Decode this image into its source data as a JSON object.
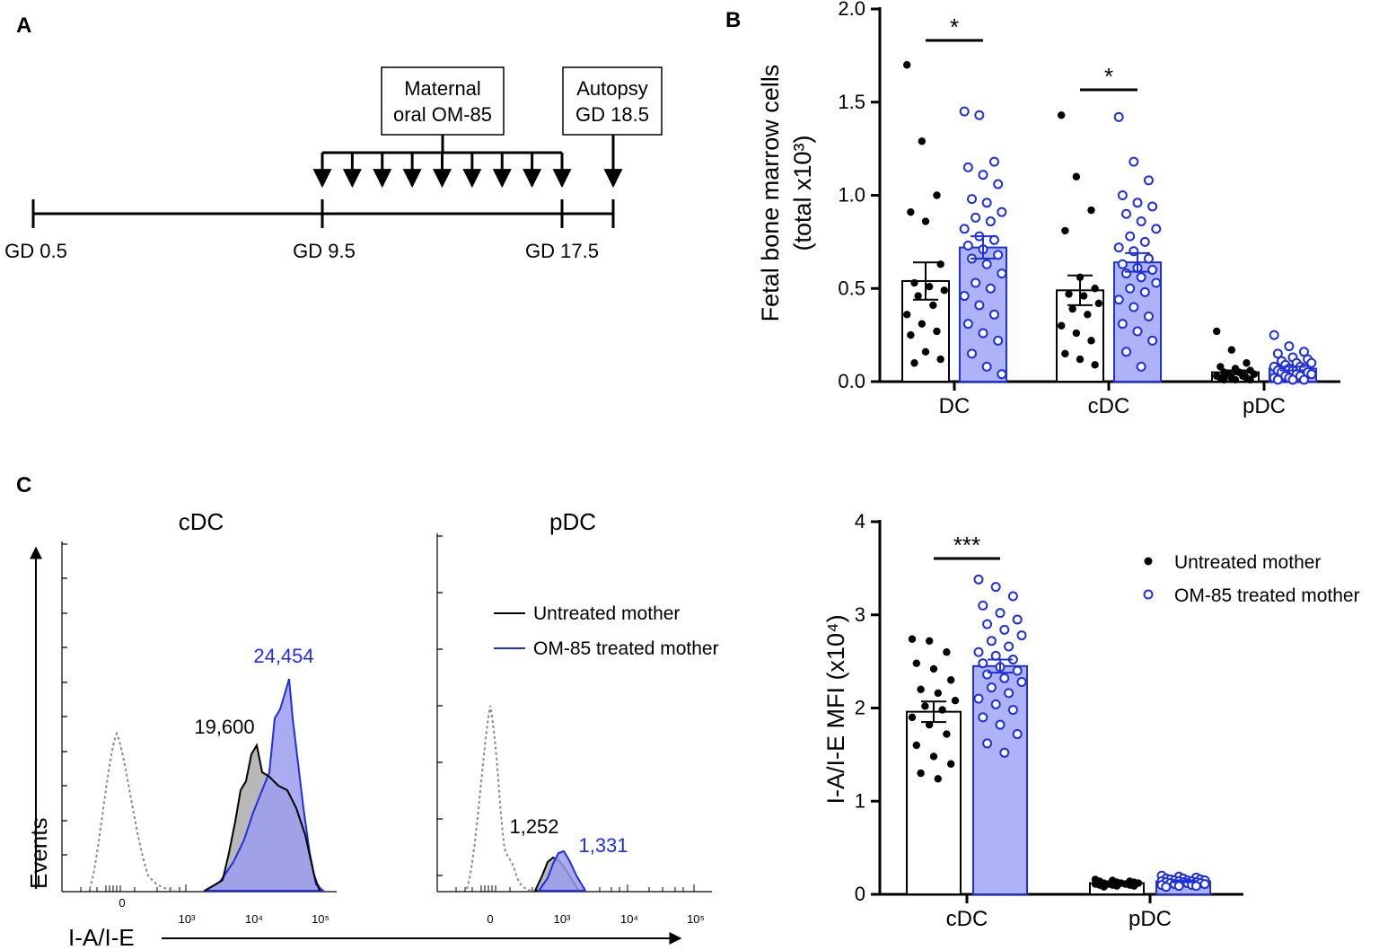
{
  "panel_labels": {
    "a": "A",
    "b": "B",
    "c": "C"
  },
  "colors": {
    "untreated": "#000000",
    "treated": "#1d2fe0",
    "treated_fill": "#aeb2f7",
    "untreated_fill": "#b8b8b8",
    "overlap_fill": "#7a7ad6"
  },
  "timeline": {
    "start_label": "GD 0.5",
    "dose_start_label": "GD 9.5",
    "dose_end_label": "GD 17.5",
    "treatment_box": [
      "Maternal",
      "oral OM-85"
    ],
    "autopsy_box": [
      "Autopsy",
      "GD 18.5"
    ],
    "dose_count": 9
  },
  "histograms": {
    "cdc_title": "cDC",
    "pdc_title": "pDC",
    "x_axis_label": "I-A/I-E",
    "y_axis_label": "Events",
    "x_tick_labels": [
      "0",
      "10³",
      "10⁴",
      "10⁵"
    ],
    "cdc_untreated_mfi": "19,600",
    "cdc_treated_mfi": "24,454",
    "pdc_untreated_mfi": "1,252",
    "pdc_treated_mfi": "1,331",
    "legend": [
      "Untreated mother",
      "OM-85 treated mother"
    ]
  },
  "chart_data": [
    {
      "type": "bar",
      "panel": "B",
      "categories": [
        "DC",
        "cDC",
        "pDC"
      ],
      "series": [
        {
          "name": "Untreated mother",
          "values": [
            0.54,
            0.49,
            0.05
          ],
          "sem": [
            0.1,
            0.08,
            0.01
          ],
          "points": [
            [
              1.7,
              1.29,
              1.0,
              0.91,
              0.86,
              0.63,
              0.53,
              0.51,
              0.49,
              0.46,
              0.41,
              0.36,
              0.31,
              0.27,
              0.25,
              0.16,
              0.12,
              0.1
            ],
            [
              1.43,
              1.1,
              0.92,
              0.81,
              0.56,
              0.5,
              0.47,
              0.46,
              0.42,
              0.39,
              0.36,
              0.3,
              0.26,
              0.22,
              0.15,
              0.12,
              0.09
            ],
            [
              0.27,
              0.17,
              0.1,
              0.08,
              0.07,
              0.06,
              0.05,
              0.05,
              0.04,
              0.04,
              0.03,
              0.03,
              0.02,
              0.02,
              0.02,
              0.01,
              0.01,
              0.01
            ]
          ]
        },
        {
          "name": "OM-85 treated mother",
          "values": [
            0.72,
            0.64,
            0.07
          ],
          "sem": [
            0.06,
            0.05,
            0.01
          ],
          "points": [
            [
              1.45,
              1.43,
              1.18,
              1.15,
              1.11,
              1.06,
              0.98,
              0.96,
              0.91,
              0.88,
              0.86,
              0.82,
              0.78,
              0.76,
              0.73,
              0.71,
              0.68,
              0.66,
              0.63,
              0.58,
              0.53,
              0.5,
              0.46,
              0.41,
              0.36,
              0.31,
              0.26,
              0.22,
              0.15,
              0.08,
              0.04
            ],
            [
              1.42,
              1.18,
              1.08,
              1.0,
              0.96,
              0.94,
              0.9,
              0.86,
              0.82,
              0.78,
              0.75,
              0.72,
              0.7,
              0.66,
              0.63,
              0.61,
              0.6,
              0.58,
              0.56,
              0.53,
              0.5,
              0.48,
              0.44,
              0.4,
              0.35,
              0.31,
              0.27,
              0.22,
              0.16,
              0.08
            ],
            [
              0.25,
              0.19,
              0.16,
              0.15,
              0.13,
              0.12,
              0.11,
              0.1,
              0.1,
              0.09,
              0.08,
              0.08,
              0.07,
              0.07,
              0.06,
              0.06,
              0.05,
              0.05,
              0.04,
              0.04,
              0.03,
              0.03,
              0.02,
              0.02,
              0.01,
              0.01,
              0.01
            ]
          ]
        }
      ],
      "ylabel": "Fetal bone marrow cells (total x10³)",
      "ylabel_lines": [
        "Fetal bone marrow cells",
        "(total x10³)"
      ],
      "yticks": [
        0.0,
        0.5,
        1.0,
        1.5,
        2.0
      ],
      "ytick_labels": [
        "0.0",
        "0.5",
        "1.0",
        "1.5",
        "2.0"
      ],
      "ylim": [
        0,
        2.0
      ],
      "significance": [
        {
          "category": "DC",
          "label": "*"
        },
        {
          "category": "cDC",
          "label": "*"
        }
      ]
    },
    {
      "type": "bar",
      "panel": "C",
      "categories": [
        "cDC",
        "pDC"
      ],
      "series": [
        {
          "name": "Untreated mother",
          "values": [
            1.96,
            0.12
          ],
          "sem": [
            0.11,
            0.01
          ],
          "points": [
            [
              2.74,
              2.72,
              2.6,
              2.48,
              2.42,
              2.3,
              2.2,
              2.16,
              2.08,
              2.02,
              1.98,
              1.9,
              1.82,
              1.72,
              1.6,
              1.48,
              1.4,
              1.3,
              1.24
            ],
            [
              0.16,
              0.15,
              0.14,
              0.14,
              0.13,
              0.13,
              0.12,
              0.12,
              0.12,
              0.11,
              0.11,
              0.11,
              0.1,
              0.1,
              0.1,
              0.09,
              0.09,
              0.08
            ]
          ]
        },
        {
          "name": "OM-85 treated mother",
          "values": [
            2.45,
            0.14
          ],
          "sem": [
            0.07,
            0.01
          ],
          "points": [
            [
              3.38,
              3.3,
              3.2,
              3.1,
              3.02,
              2.95,
              2.9,
              2.84,
              2.78,
              2.72,
              2.66,
              2.6,
              2.56,
              2.52,
              2.48,
              2.44,
              2.4,
              2.36,
              2.32,
              2.28,
              2.22,
              2.16,
              2.1,
              2.04,
              1.98,
              1.9,
              1.82,
              1.72,
              1.62,
              1.52
            ],
            [
              0.2,
              0.19,
              0.18,
              0.17,
              0.17,
              0.16,
              0.16,
              0.15,
              0.15,
              0.15,
              0.14,
              0.14,
              0.14,
              0.13,
              0.13,
              0.13,
              0.12,
              0.12,
              0.12,
              0.11,
              0.11,
              0.1,
              0.1,
              0.09,
              0.09,
              0.08
            ]
          ]
        }
      ],
      "ylabel": "I-A/I-E MFI (x10⁴)",
      "yticks": [
        0,
        1,
        2,
        3,
        4
      ],
      "ytick_labels": [
        "0",
        "1",
        "2",
        "3",
        "4"
      ],
      "ylim": [
        0,
        4
      ],
      "significance": [
        {
          "category": "cDC",
          "label": "***"
        }
      ],
      "legend": [
        "Untreated mother",
        "OM-85 treated mother"
      ]
    }
  ]
}
